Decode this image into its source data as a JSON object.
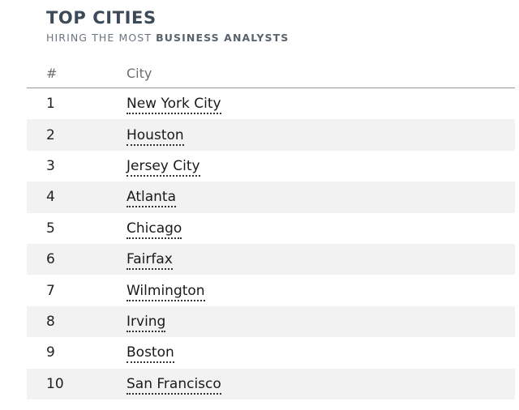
{
  "header": {
    "title": "TOP CITIES",
    "subtitle_prefix": "HIRING THE MOST ",
    "subtitle_strong": "BUSINESS ANALYSTS"
  },
  "table": {
    "columns": {
      "rank": "#",
      "city": "City"
    },
    "rows": [
      {
        "rank": "1",
        "city": "New York City"
      },
      {
        "rank": "2",
        "city": "Houston"
      },
      {
        "rank": "3",
        "city": "Jersey City"
      },
      {
        "rank": "4",
        "city": "Atlanta"
      },
      {
        "rank": "5",
        "city": "Chicago"
      },
      {
        "rank": "6",
        "city": "Fairfax"
      },
      {
        "rank": "7",
        "city": "Wilmington"
      },
      {
        "rank": "8",
        "city": "Irving"
      },
      {
        "rank": "9",
        "city": "Boston"
      },
      {
        "rank": "10",
        "city": "San Francisco"
      }
    ]
  }
}
